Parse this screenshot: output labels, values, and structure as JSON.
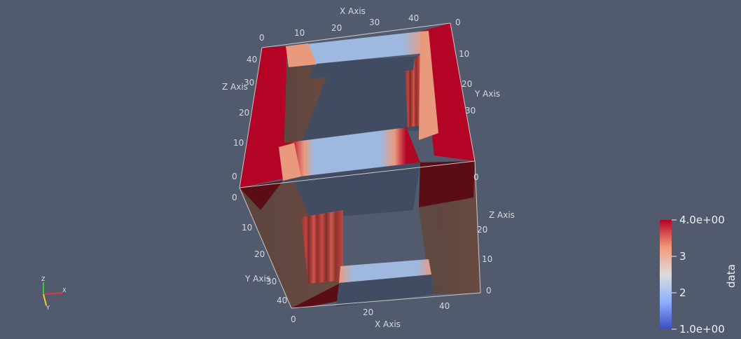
{
  "render_view": {
    "background_color": "#525a6e",
    "colormap": "Cool to Warm",
    "dataset_shape": "hollow square frame (cube with rectangular hole)"
  },
  "axes": {
    "x_title": "X Axis",
    "y_title": "Y Axis",
    "z_title": "Z Axis",
    "top_x_ticks": [
      "0",
      "10",
      "20",
      "30",
      "40"
    ],
    "top_x_end": "0",
    "right_y_ticks": [
      "10",
      "20",
      "30"
    ],
    "left_z_ticks": [
      "40",
      "30",
      "20",
      "10",
      "0"
    ],
    "right_z_ticks": [
      "0",
      "20",
      "10",
      "0"
    ],
    "left_y_ticks": [
      "0",
      "10",
      "20",
      "30",
      "40"
    ],
    "bottom_x_ticks": [
      "0",
      "20",
      "40"
    ]
  },
  "orientation_triad": {
    "x": "X",
    "y": "Y",
    "z": "Z",
    "x_color": "#e03a3a",
    "y_color": "#e6d23a",
    "z_color": "#3ac83a"
  },
  "color_legend": {
    "title": "data",
    "max_label": "4.0e+00",
    "tick_3": "3",
    "tick_2": "2",
    "min_label": "1.0e+00",
    "colors": [
      "#3b4cc0",
      "#8db0fe",
      "#dddcdc",
      "#f49a7b",
      "#b40426"
    ]
  }
}
